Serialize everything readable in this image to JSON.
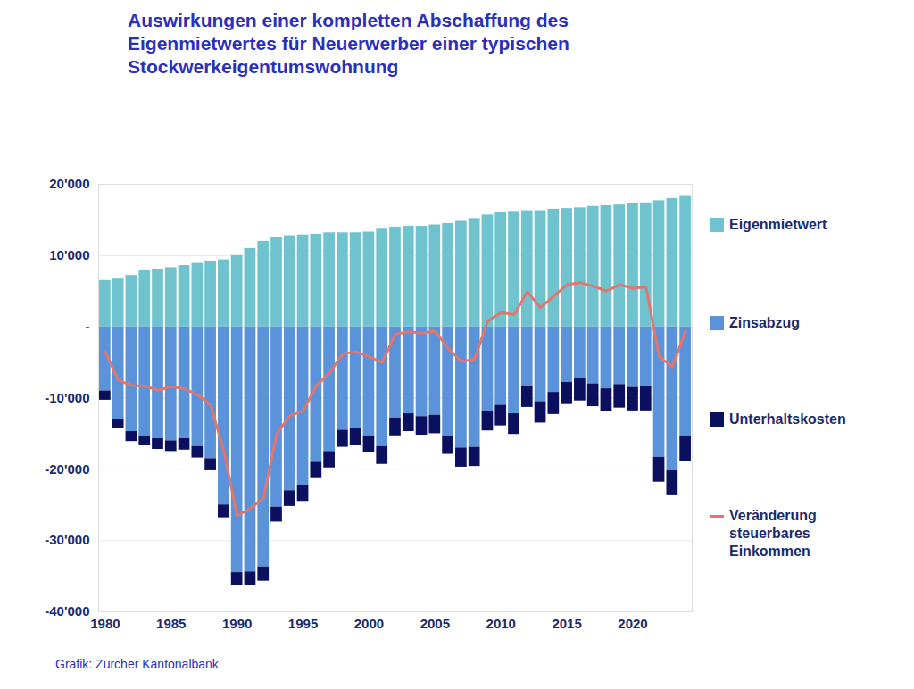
{
  "chart_data": {
    "type": "bar",
    "title": "Auswirkungen einer kompletten Abschaffung des Eigenmietwertes für Neuerwerber einer typischen Stockwerkeigentumswohnung",
    "caption": "Grafik: Zürcher Kantonalbank",
    "stacked": true,
    "grid": true,
    "legend": "right",
    "x": [
      1980,
      1981,
      1982,
      1983,
      1984,
      1985,
      1986,
      1987,
      1988,
      1989,
      1990,
      1991,
      1992,
      1993,
      1994,
      1995,
      1996,
      1997,
      1998,
      1999,
      2000,
      2001,
      2002,
      2003,
      2004,
      2005,
      2006,
      2007,
      2008,
      2009,
      2010,
      2011,
      2012,
      2013,
      2014,
      2015,
      2016,
      2017,
      2018,
      2019,
      2020,
      2021,
      2022,
      2023,
      2024
    ],
    "xlim": [
      1979.5,
      2024.5
    ],
    "xticks": [
      1980,
      1985,
      1990,
      1995,
      2000,
      2005,
      2010,
      2015,
      2020
    ],
    "ylim": [
      -40000,
      20000
    ],
    "yticks": [
      {
        "value": -40000,
        "label": "-40'000"
      },
      {
        "value": -30000,
        "label": "-30'000"
      },
      {
        "value": -20000,
        "label": "-20'000"
      },
      {
        "value": -10000,
        "label": "-10'000"
      },
      {
        "value": 0,
        "label": "-"
      },
      {
        "value": 10000,
        "label": "10'000"
      },
      {
        "value": 20000,
        "label": "20'000"
      }
    ],
    "series": [
      {
        "name": "Eigenmietwert",
        "type": "bar",
        "color": "#6fc3cf",
        "values": [
          6500,
          6700,
          7200,
          7900,
          8100,
          8300,
          8600,
          8900,
          9200,
          9400,
          10000,
          11000,
          12000,
          12600,
          12800,
          12900,
          13000,
          13200,
          13200,
          13200,
          13300,
          13700,
          14000,
          14100,
          14100,
          14300,
          14500,
          14800,
          15200,
          15700,
          16000,
          16200,
          16300,
          16300,
          16500,
          16600,
          16700,
          16900,
          17000,
          17100,
          17300,
          17400,
          17700,
          18000,
          18300
        ]
      },
      {
        "name": "Zinsabzug",
        "type": "bar",
        "color": "#5a93d9",
        "values": [
          -9000,
          -13000,
          -14700,
          -15300,
          -15700,
          -16000,
          -15700,
          -16800,
          -18500,
          -25000,
          -34500,
          -34400,
          -33700,
          -25300,
          -23000,
          -22200,
          -19000,
          -17500,
          -14500,
          -14300,
          -15300,
          -16800,
          -12800,
          -12200,
          -12600,
          -12400,
          -15300,
          -17000,
          -16900,
          -11800,
          -11000,
          -12200,
          -8300,
          -10500,
          -9200,
          -7800,
          -7300,
          -8000,
          -8700,
          -8100,
          -8500,
          -8400,
          -18300,
          -20200,
          -15300
        ]
      },
      {
        "name": "Unterhaltskosten",
        "type": "bar",
        "color": "#0b105e",
        "values": [
          -1300,
          -1300,
          -1400,
          -1400,
          -1500,
          -1500,
          -1600,
          -1600,
          -1700,
          -1800,
          -1800,
          -1900,
          -2000,
          -2100,
          -2200,
          -2300,
          -2300,
          -2300,
          -2400,
          -2400,
          -2400,
          -2500,
          -2500,
          -2500,
          -2600,
          -2600,
          -2600,
          -2700,
          -2700,
          -2800,
          -2900,
          -2900,
          -3000,
          -3000,
          -3100,
          -3100,
          -3100,
          -3200,
          -3200,
          -3300,
          -3300,
          -3400,
          -3500,
          -3500,
          -3600
        ]
      },
      {
        "name": "Veränderung steuerbares Einkommen",
        "type": "line",
        "color": "#e0766f",
        "values": [
          -3500,
          -7500,
          -8200,
          -8300,
          -8900,
          -8400,
          -8700,
          -9500,
          -11000,
          -17500,
          -26500,
          -25500,
          -24000,
          -15000,
          -12500,
          -11800,
          -8300,
          -6500,
          -3800,
          -3500,
          -4200,
          -5000,
          -1000,
          -700,
          -900,
          -600,
          -3000,
          -4900,
          -4500,
          800,
          2000,
          1700,
          4900,
          2700,
          4300,
          5900,
          6200,
          5700,
          5000,
          5900,
          5400,
          5600,
          -4200,
          -5600,
          -600
        ]
      }
    ]
  }
}
